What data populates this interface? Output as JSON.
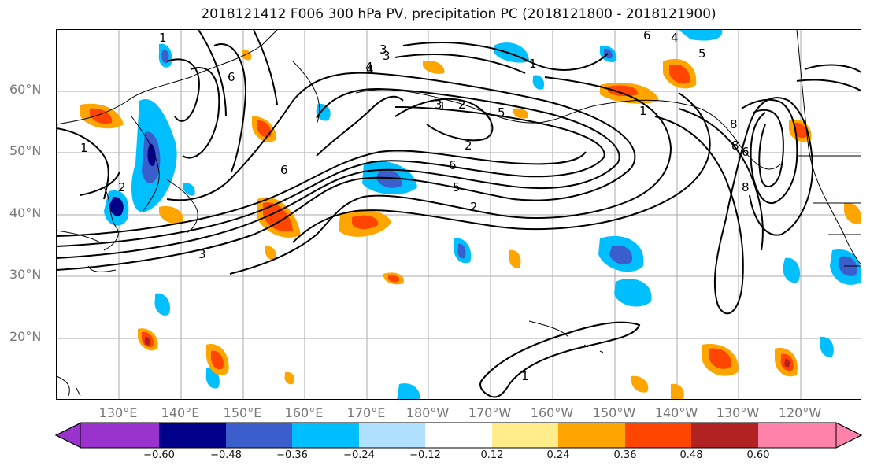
{
  "title": "2018121412 F006 300 hPa PV, precipitation PC (2018121800 - 2018121900)",
  "axes": {
    "lat_labels": [
      "60°N",
      "50°N",
      "40°N",
      "30°N",
      "20°N"
    ],
    "lon_labels": [
      "130°E",
      "140°E",
      "150°E",
      "160°E",
      "170°E",
      "180°W",
      "170°W",
      "160°W",
      "150°W",
      "140°W",
      "130°W",
      "120°W"
    ]
  },
  "pv_contour_labels": [
    "1",
    "2",
    "3",
    "4",
    "5",
    "6",
    "1",
    "2",
    "3",
    "4",
    "6",
    "1",
    "2",
    "3",
    "6",
    "1",
    "2",
    "5",
    "6",
    "8",
    "8",
    "8",
    "1",
    "3",
    "1",
    "6",
    "4",
    "5"
  ],
  "colorbar": {
    "ticks": [
      "−0.60",
      "−0.48",
      "−0.36",
      "−0.24",
      "−0.12",
      "0.12",
      "0.24",
      "0.36",
      "0.48",
      "0.60"
    ],
    "colors": [
      "#9a32cd",
      "#00008b",
      "#3a5fcd",
      "#00bfff",
      "#b0e2ff",
      "#ffffff",
      "#ffec8b",
      "#ffa500",
      "#ff4500",
      "#b22222",
      "#ff82ab"
    ]
  }
}
